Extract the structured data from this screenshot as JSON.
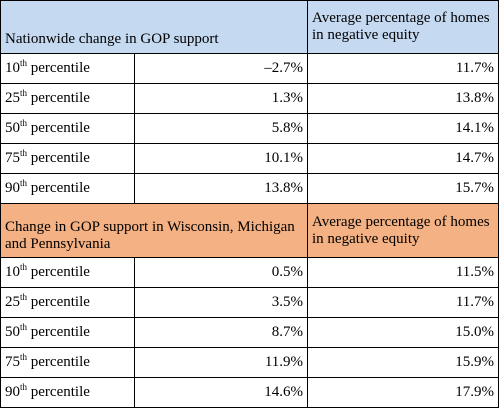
{
  "colors": {
    "section1_header_bg": "#c5d9f1",
    "section2_header_bg": "#f4b183",
    "border": "#000000"
  },
  "sections": [
    {
      "header_left": "Nationwide change in GOP support",
      "header_right": "Average percentage of homes in negative equity",
      "rows": [
        {
          "pct": "10",
          "suffix": "th",
          "label": " percentile",
          "gop": "–2.7%",
          "equity": "11.7%"
        },
        {
          "pct": "25",
          "suffix": "th",
          "label": " percentile",
          "gop": "1.3%",
          "equity": "13.8%"
        },
        {
          "pct": "50",
          "suffix": "th",
          "label": " percentile",
          "gop": "5.8%",
          "equity": "14.1%"
        },
        {
          "pct": "75",
          "suffix": "th",
          "label": " percentile",
          "gop": "10.1%",
          "equity": "14.7%"
        },
        {
          "pct": "90",
          "suffix": "th",
          "label": " percentile",
          "gop": "13.8%",
          "equity": "15.7%"
        }
      ]
    },
    {
      "header_left": "Change in GOP support in Wisconsin, Michigan and Pennsylvania",
      "header_right": "Average percentage of homes in negative equity",
      "rows": [
        {
          "pct": "10",
          "suffix": "th",
          "label": " percentile",
          "gop": "0.5%",
          "equity": "11.5%"
        },
        {
          "pct": "25",
          "suffix": "th",
          "label": " percentile",
          "gop": "3.5%",
          "equity": "11.7%"
        },
        {
          "pct": "50",
          "suffix": "th",
          "label": " percentile",
          "gop": "8.7%",
          "equity": "15.0%"
        },
        {
          "pct": "75",
          "suffix": "th",
          "label": " percentile",
          "gop": "11.9%",
          "equity": "15.9%"
        },
        {
          "pct": "90",
          "suffix": "th",
          "label": " percentile",
          "gop": "14.6%",
          "equity": "17.9%"
        }
      ]
    }
  ]
}
